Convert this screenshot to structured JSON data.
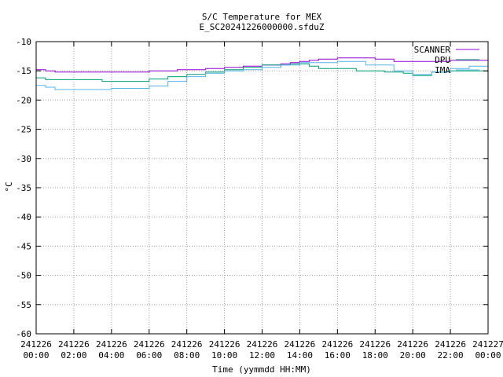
{
  "chart_data": {
    "type": "line",
    "title": "S/C Temperature for MEX",
    "subtitle": "E_SC20241226000000.sfduZ",
    "xlabel": "Time (yymmdd HH:MM)",
    "ylabel": "°C",
    "xlim": [
      "2024-12-26T00:00",
      "2024-12-27T00:00"
    ],
    "ylim": [
      -60,
      -10
    ],
    "grid": true,
    "legend_position": "top-right",
    "x_ticks": [
      {
        "date": "241226",
        "time": "00:00"
      },
      {
        "date": "241226",
        "time": "02:00"
      },
      {
        "date": "241226",
        "time": "04:00"
      },
      {
        "date": "241226",
        "time": "06:00"
      },
      {
        "date": "241226",
        "time": "08:00"
      },
      {
        "date": "241226",
        "time": "10:00"
      },
      {
        "date": "241226",
        "time": "12:00"
      },
      {
        "date": "241226",
        "time": "14:00"
      },
      {
        "date": "241226",
        "time": "16:00"
      },
      {
        "date": "241226",
        "time": "18:00"
      },
      {
        "date": "241226",
        "time": "20:00"
      },
      {
        "date": "241226",
        "time": "22:00"
      },
      {
        "date": "241227",
        "time": "00:00"
      }
    ],
    "y_ticks": [
      "-10",
      "-15",
      "-20",
      "-25",
      "-30",
      "-35",
      "-40",
      "-45",
      "-50",
      "-55",
      "-60"
    ],
    "series": [
      {
        "name": "SCANNER",
        "color": "#9400d3",
        "x": [
          "2024-12-26T00:00",
          "2024-12-26T00:30",
          "2024-12-26T01:00",
          "2024-12-26T06:00",
          "2024-12-26T07:30",
          "2024-12-26T09:00",
          "2024-12-26T10:00",
          "2024-12-26T10:30",
          "2024-12-26T11:00",
          "2024-12-26T12:00",
          "2024-12-26T13:00",
          "2024-12-26T13:30",
          "2024-12-26T14:00",
          "2024-12-26T14:30",
          "2024-12-26T15:00",
          "2024-12-26T16:00",
          "2024-12-26T18:00",
          "2024-12-26T19:00",
          "2024-12-26T22:00",
          "2024-12-27T00:00"
        ],
        "y": [
          -14.8,
          -15.0,
          -15.2,
          -15.0,
          -14.8,
          -14.6,
          -14.4,
          -14.4,
          -14.2,
          -14.0,
          -13.8,
          -13.6,
          -13.4,
          -13.2,
          -13.0,
          -12.8,
          -13.0,
          -13.4,
          -13.2,
          -13.2
        ]
      },
      {
        "name": "DPU",
        "color": "#009e73",
        "x": [
          "2024-12-26T00:00",
          "2024-12-26T00:30",
          "2024-12-26T03:30",
          "2024-12-26T06:00",
          "2024-12-26T07:00",
          "2024-12-26T08:00",
          "2024-12-26T09:00",
          "2024-12-26T10:00",
          "2024-12-26T11:00",
          "2024-12-26T12:00",
          "2024-12-26T13:30",
          "2024-12-26T14:30",
          "2024-12-26T15:00",
          "2024-12-26T17:00",
          "2024-12-26T18:30",
          "2024-12-26T19:30",
          "2024-12-26T20:00",
          "2024-12-26T21:00",
          "2024-12-26T22:00",
          "2024-12-27T00:00"
        ],
        "y": [
          -16.2,
          -16.5,
          -16.8,
          -16.4,
          -16.0,
          -15.6,
          -15.2,
          -14.8,
          -14.4,
          -14.0,
          -13.8,
          -14.2,
          -14.6,
          -15.0,
          -15.2,
          -15.4,
          -15.8,
          -15.2,
          -15.0,
          -14.8
        ]
      },
      {
        "name": "IMA",
        "color": "#56b4e9",
        "x": [
          "2024-12-26T00:00",
          "2024-12-26T00:30",
          "2024-12-26T01:00",
          "2024-12-26T04:00",
          "2024-12-26T06:00",
          "2024-12-26T07:00",
          "2024-12-26T08:00",
          "2024-12-26T09:00",
          "2024-12-26T10:00",
          "2024-12-26T11:00",
          "2024-12-26T12:00",
          "2024-12-26T13:00",
          "2024-12-26T14:00",
          "2024-12-26T16:00",
          "2024-12-26T17:30",
          "2024-12-26T19:00",
          "2024-12-26T20:00",
          "2024-12-26T21:00",
          "2024-12-26T22:00",
          "2024-12-26T23:00",
          "2024-12-27T00:00"
        ],
        "y": [
          -17.5,
          -17.8,
          -18.2,
          -18.0,
          -17.6,
          -16.8,
          -16.0,
          -15.4,
          -15.0,
          -14.8,
          -14.4,
          -14.0,
          -13.6,
          -13.4,
          -14.0,
          -15.0,
          -15.6,
          -15.2,
          -14.6,
          -14.2,
          -14.2
        ]
      }
    ]
  }
}
